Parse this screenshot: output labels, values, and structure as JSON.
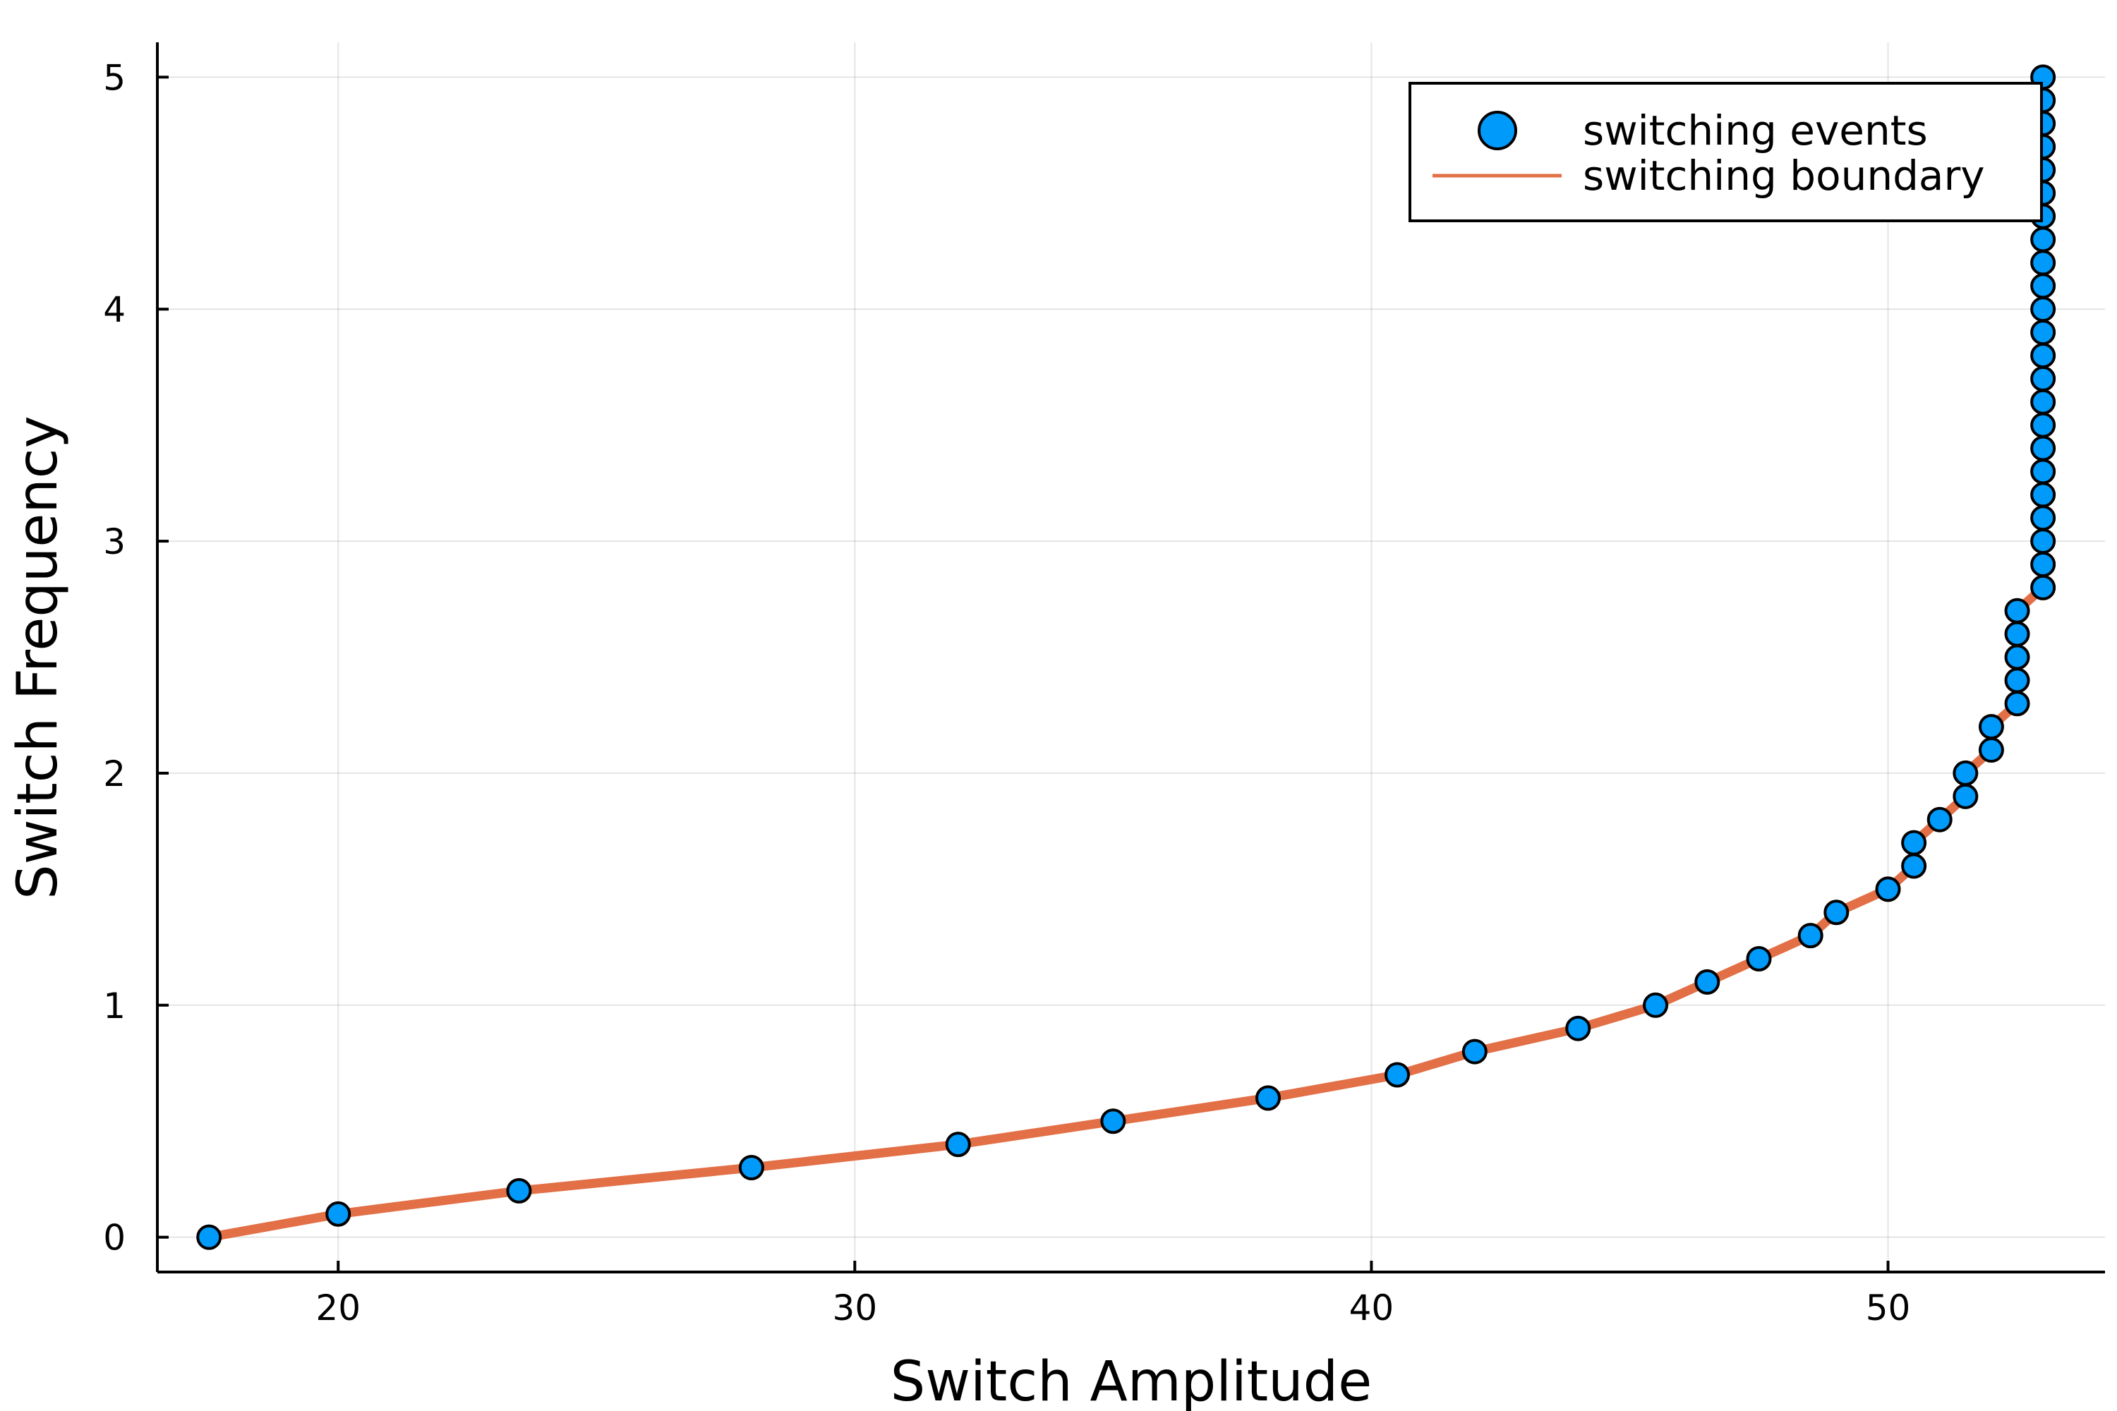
{
  "chart_data": {
    "type": "scatter",
    "title": "",
    "xlabel": "Switch Amplitude",
    "ylabel": "Switch Frequency",
    "xlim": [
      16.5,
      54.2
    ],
    "ylim": [
      -0.15,
      5.15
    ],
    "x_ticks": [
      20,
      30,
      40,
      50
    ],
    "y_ticks": [
      0,
      1,
      2,
      3,
      4,
      5
    ],
    "grid": true,
    "legend_position": "top-right",
    "colors": {
      "events": "#009AFA",
      "boundary": "#E26F46"
    },
    "series": [
      {
        "name": "switching events",
        "kind": "scatter",
        "points": [
          [
            17.5,
            0.0
          ],
          [
            20.0,
            0.1
          ],
          [
            23.5,
            0.2
          ],
          [
            28.0,
            0.3
          ],
          [
            32.0,
            0.4
          ],
          [
            35.0,
            0.5
          ],
          [
            38.0,
            0.6
          ],
          [
            40.5,
            0.7
          ],
          [
            42.0,
            0.8
          ],
          [
            44.0,
            0.9
          ],
          [
            45.5,
            1.0
          ],
          [
            46.5,
            1.1
          ],
          [
            47.5,
            1.2
          ],
          [
            48.5,
            1.3
          ],
          [
            49.0,
            1.4
          ],
          [
            50.0,
            1.5
          ],
          [
            50.5,
            1.6
          ],
          [
            50.5,
            1.7
          ],
          [
            51.0,
            1.8
          ],
          [
            51.5,
            1.9
          ],
          [
            51.5,
            2.0
          ],
          [
            52.0,
            2.1
          ],
          [
            52.0,
            2.2
          ],
          [
            52.5,
            2.3
          ],
          [
            52.5,
            2.4
          ],
          [
            52.5,
            2.5
          ],
          [
            52.5,
            2.6
          ],
          [
            52.5,
            2.7
          ],
          [
            53.0,
            2.8
          ],
          [
            53.0,
            2.9
          ],
          [
            53.0,
            3.0
          ],
          [
            53.0,
            3.1
          ],
          [
            53.0,
            3.2
          ],
          [
            53.0,
            3.3
          ],
          [
            53.0,
            3.4
          ],
          [
            53.0,
            3.5
          ],
          [
            53.0,
            3.6
          ],
          [
            53.0,
            3.7
          ],
          [
            53.0,
            3.8
          ],
          [
            53.0,
            3.9
          ],
          [
            53.0,
            4.0
          ],
          [
            53.0,
            4.1
          ],
          [
            53.0,
            4.2
          ],
          [
            53.0,
            4.3
          ],
          [
            53.0,
            4.4
          ],
          [
            53.0,
            4.5
          ],
          [
            53.0,
            4.6
          ],
          [
            53.0,
            4.7
          ],
          [
            53.0,
            4.8
          ],
          [
            53.0,
            4.9
          ],
          [
            53.0,
            5.0
          ]
        ]
      },
      {
        "name": "switching boundary",
        "kind": "line",
        "points": [
          [
            17.5,
            0.0
          ],
          [
            20.0,
            0.1
          ],
          [
            23.5,
            0.2
          ],
          [
            28.0,
            0.3
          ],
          [
            32.0,
            0.4
          ],
          [
            35.0,
            0.5
          ],
          [
            38.0,
            0.6
          ],
          [
            40.5,
            0.7
          ],
          [
            42.0,
            0.8
          ],
          [
            44.0,
            0.9
          ],
          [
            45.5,
            1.0
          ],
          [
            46.5,
            1.1
          ],
          [
            47.5,
            1.2
          ],
          [
            48.5,
            1.3
          ],
          [
            49.0,
            1.4
          ],
          [
            50.0,
            1.5
          ],
          [
            50.5,
            1.6
          ],
          [
            50.5,
            1.7
          ],
          [
            51.0,
            1.8
          ],
          [
            51.5,
            1.9
          ],
          [
            51.5,
            2.0
          ],
          [
            52.0,
            2.1
          ],
          [
            52.0,
            2.2
          ],
          [
            52.5,
            2.3
          ],
          [
            52.5,
            2.4
          ],
          [
            52.5,
            2.5
          ],
          [
            52.5,
            2.6
          ],
          [
            52.5,
            2.7
          ],
          [
            53.0,
            2.8
          ],
          [
            53.0,
            2.9
          ],
          [
            53.0,
            3.0
          ],
          [
            53.0,
            3.1
          ],
          [
            53.0,
            3.2
          ],
          [
            53.0,
            3.3
          ],
          [
            53.0,
            3.4
          ],
          [
            53.0,
            3.5
          ],
          [
            53.0,
            3.6
          ],
          [
            53.0,
            3.7
          ],
          [
            53.0,
            3.8
          ],
          [
            53.0,
            3.9
          ],
          [
            53.0,
            4.0
          ],
          [
            53.0,
            4.1
          ],
          [
            53.0,
            4.2
          ],
          [
            53.0,
            4.3
          ],
          [
            53.0,
            4.4
          ],
          [
            53.0,
            4.5
          ],
          [
            53.0,
            4.6
          ],
          [
            53.0,
            4.7
          ],
          [
            53.0,
            4.8
          ],
          [
            53.0,
            4.9
          ],
          [
            53.0,
            5.0
          ]
        ]
      }
    ]
  }
}
